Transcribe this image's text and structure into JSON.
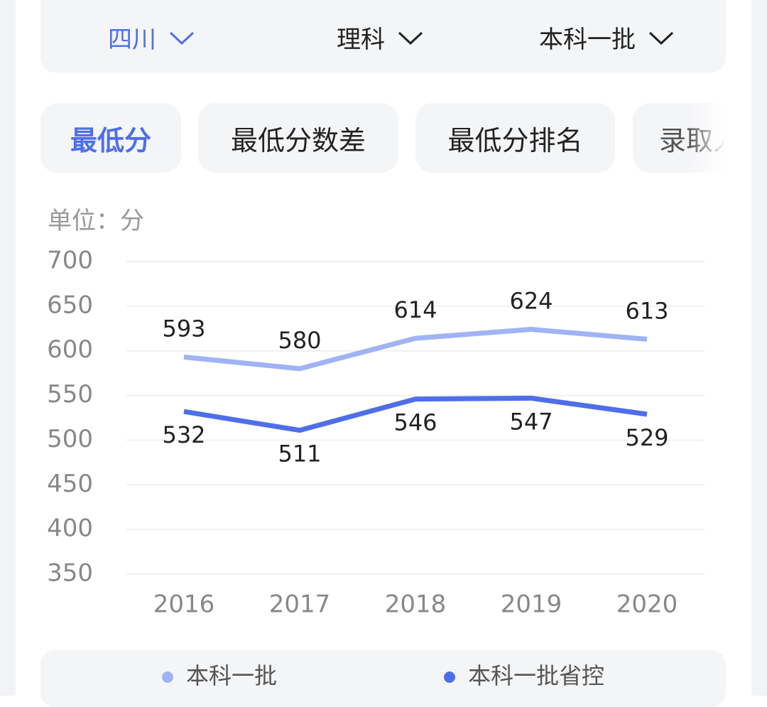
{
  "filters": [
    "四川",
    "理科",
    "本科一批"
  ],
  "tabs": [
    "最低分",
    "最低分数差",
    "最低分排名",
    "录取人"
  ],
  "unit_label": "单位：分",
  "chart_data": {
    "type": "line",
    "categories": [
      "2016",
      "2017",
      "2018",
      "2019",
      "2020"
    ],
    "series": [
      {
        "name": "本科一批",
        "color": "#9fb3f5",
        "values": [
          593,
          580,
          614,
          624,
          613
        ]
      },
      {
        "name": "本科一批省控",
        "color": "#4f6fe8",
        "values": [
          532,
          511,
          546,
          547,
          529
        ]
      }
    ],
    "ylim": [
      350,
      700
    ],
    "yticks": [
      350,
      400,
      450,
      500,
      550,
      600,
      650,
      700
    ],
    "grid": true
  }
}
